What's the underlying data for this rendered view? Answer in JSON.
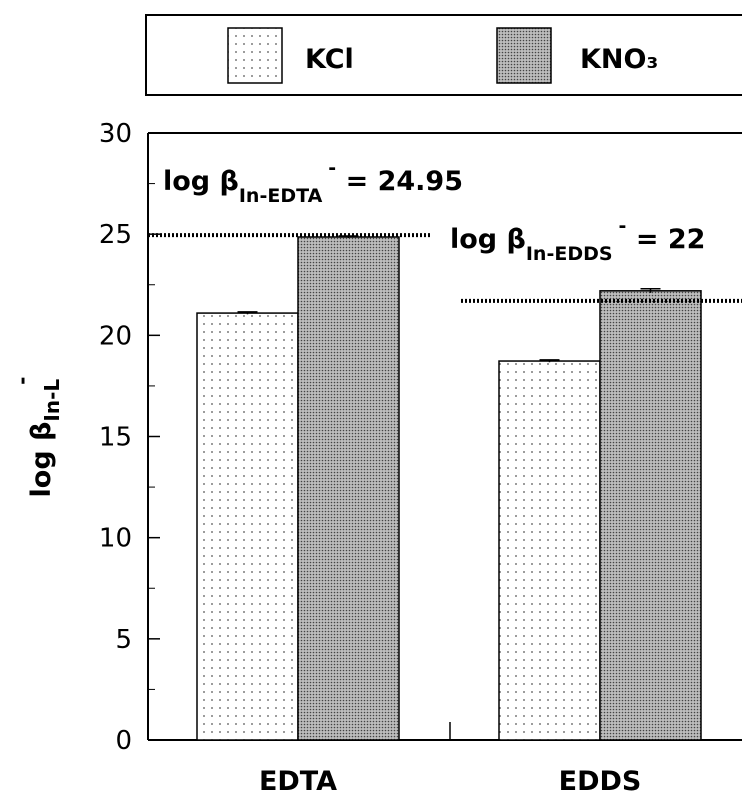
{
  "chart_data": {
    "type": "bar",
    "categories": [
      "EDTA",
      "EDDS"
    ],
    "series": [
      {
        "name": "KCl",
        "color": "#ffffff",
        "dot_color": "#555555",
        "pattern": "sparse-dots",
        "values": [
          21.1,
          18.73
        ],
        "errors": [
          0.06,
          0.06
        ]
      },
      {
        "name": "KNO₃",
        "color": "#bdbdbd",
        "dot_color": "#444444",
        "pattern": "dense-dots",
        "values": [
          24.86,
          22.2
        ],
        "errors": [
          0.05,
          0.1
        ]
      }
    ],
    "ylim": [
      0,
      30
    ],
    "yticks": [
      0,
      5,
      10,
      15,
      20,
      25,
      30
    ],
    "yminorticks": [
      2.5,
      7.5,
      12.5,
      17.5,
      22.5,
      27.5
    ],
    "y_label": {
      "text": "log β",
      "sub": "In-L",
      "sup": "-"
    },
    "annotations": [
      {
        "value": 24.95,
        "text": "log β",
        "sub": "In-EDTA",
        "sup": "-",
        "rest": " = 24.95"
      },
      {
        "value": 21.7,
        "text": "log β",
        "sub": "In-EDDS",
        "sup": "-",
        "rest": " = 22"
      }
    ]
  }
}
